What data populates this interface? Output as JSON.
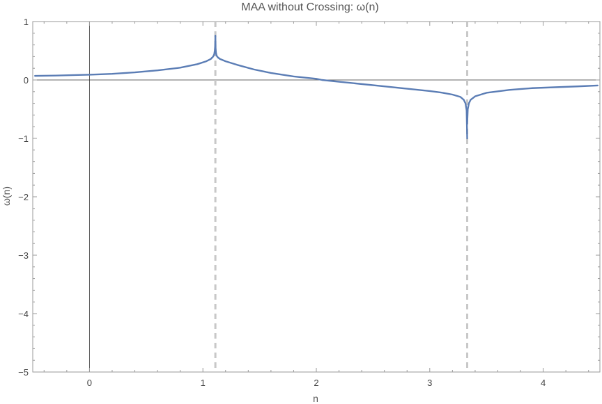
{
  "chart_data": {
    "type": "line",
    "title": "MAA without Crossing: ω(n)",
    "xlabel": "n",
    "ylabel": "ω(n)",
    "xlim": [
      -0.5,
      4.5
    ],
    "ylim": [
      -5,
      1
    ],
    "x_ticks": [
      0,
      1,
      2,
      3,
      4
    ],
    "y_ticks": [
      1,
      0,
      -1,
      -2,
      -3,
      -4,
      -5
    ],
    "x_tick_labels": [
      "0",
      "1",
      "2",
      "3",
      "4"
    ],
    "y_tick_labels": [
      "1",
      "0",
      "−1",
      "−2",
      "−3",
      "−4",
      "−5"
    ],
    "grid": false,
    "reference_lines": {
      "x": [
        1.11,
        3.33
      ],
      "style": "dashed",
      "color": "#c8c8c8"
    },
    "series": [
      {
        "color": "#5b7db5",
        "segments": [
          {
            "x": [
              -0.48,
              -0.3,
              -0.1,
              0.0,
              0.2,
              0.4,
              0.6,
              0.8,
              0.95,
              1.03,
              1.07,
              1.09,
              1.1,
              1.105,
              1.108,
              1.11
            ],
            "y": [
              0.07,
              0.075,
              0.085,
              0.09,
              0.105,
              0.13,
              0.165,
              0.21,
              0.27,
              0.32,
              0.36,
              0.4,
              0.44,
              0.5,
              0.58,
              0.76
            ]
          },
          {
            "x": [
              1.11,
              1.112,
              1.115,
              1.12,
              1.13,
              1.15,
              1.2,
              1.3,
              1.45,
              1.6,
              1.8,
              2.0,
              2.05,
              2.2,
              2.4,
              2.6,
              2.8,
              3.0,
              3.1,
              3.2,
              3.27,
              3.3,
              3.315,
              3.325,
              3.33
            ],
            "y": [
              0.74,
              0.55,
              0.47,
              0.42,
              0.39,
              0.36,
              0.32,
              0.26,
              0.18,
              0.12,
              0.06,
              0.02,
              0.0,
              -0.03,
              -0.07,
              -0.11,
              -0.15,
              -0.19,
              -0.215,
              -0.25,
              -0.29,
              -0.34,
              -0.4,
              -0.52,
              -1.0
            ]
          },
          {
            "x": [
              3.33,
              3.335,
              3.345,
              3.36,
              3.4,
              3.5,
              3.7,
              3.9,
              4.1,
              4.3,
              4.48
            ],
            "y": [
              -0.75,
              -0.5,
              -0.4,
              -0.34,
              -0.28,
              -0.22,
              -0.17,
              -0.14,
              -0.125,
              -0.11,
              -0.095
            ]
          }
        ]
      }
    ]
  }
}
